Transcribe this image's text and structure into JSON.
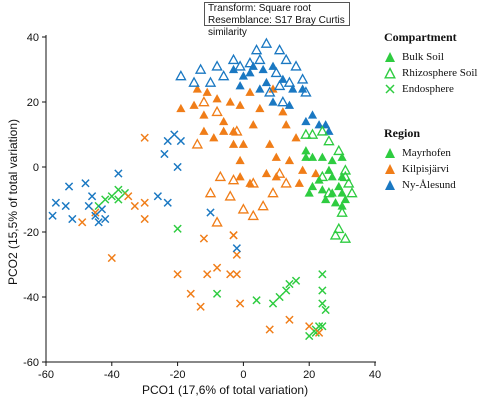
{
  "info": {
    "transform": "Transform: Square root",
    "resemblance": "Resemblance: S17 Bray Curtis similarity"
  },
  "legend": {
    "compartment_title": "Compartment",
    "compartment_items": [
      {
        "label": "Bulk Soil",
        "marker": "triangle-filled"
      },
      {
        "label": "Rhizosphere Soil",
        "marker": "triangle-open"
      },
      {
        "label": "Endosphere",
        "marker": "cross"
      }
    ],
    "region_title": "Region",
    "region_items": [
      {
        "label": "Mayrhofen",
        "color": "#2ecc40"
      },
      {
        "label": "Kilpisjärvi",
        "color": "#f07d18"
      },
      {
        "label": "Ny-Ålesund",
        "color": "#1a78c2"
      }
    ]
  },
  "colors": {
    "Mayrhofen": "#2ecc40",
    "Kilpisjärvi": "#f07d18",
    "Ny-Ålesund": "#1a78c2"
  },
  "chart_data": {
    "type": "scatter",
    "xlabel": "PCO1 (17,6% of total variation)",
    "ylabel": "PCO2 (15,5% of total variation)",
    "xlim": [
      -60,
      40
    ],
    "ylim": [
      -60,
      40
    ],
    "xticks": [
      -60,
      -40,
      -20,
      0,
      20,
      40
    ],
    "yticks": [
      -60,
      -40,
      -20,
      0,
      20,
      40
    ],
    "grid": false,
    "series": [
      {
        "name": "Bulk Soil – Mayrhofen",
        "region": "Mayrhofen",
        "marker": "triangle-filled",
        "points": [
          [
            21,
            3
          ],
          [
            24,
            3
          ],
          [
            27,
            2
          ],
          [
            30,
            3
          ],
          [
            26,
            -1
          ],
          [
            27,
            -3
          ],
          [
            23,
            -4
          ],
          [
            30,
            -3
          ],
          [
            24,
            -7
          ],
          [
            29,
            -6
          ],
          [
            30,
            -8
          ],
          [
            31,
            -10
          ],
          [
            27,
            -8
          ],
          [
            28,
            -11
          ],
          [
            30,
            -12
          ],
          [
            20,
            -8
          ],
          [
            21,
            -6
          ],
          [
            25,
            -10
          ],
          [
            19,
            5
          ],
          [
            19,
            3
          ]
        ]
      },
      {
        "name": "Bulk Soil – Kilpisjärvi",
        "region": "Kilpisjärvi",
        "marker": "triangle-filled",
        "points": [
          [
            -14,
            24
          ],
          [
            -11,
            23
          ],
          [
            -8,
            21
          ],
          [
            -15,
            19
          ],
          [
            -12,
            16
          ],
          [
            -19,
            18
          ],
          [
            -12,
            11
          ],
          [
            -6,
            14
          ],
          [
            -6,
            11
          ],
          [
            -9,
            9
          ],
          [
            -3,
            11
          ],
          [
            -3,
            7
          ],
          [
            -1,
            2
          ],
          [
            -1,
            -3
          ],
          [
            3,
            13
          ],
          [
            5,
            18
          ],
          [
            8,
            7
          ],
          [
            -1,
            19
          ],
          [
            -4,
            20
          ],
          [
            2,
            23
          ],
          [
            9,
            24
          ],
          [
            12,
            17
          ],
          [
            13,
            13
          ],
          [
            16,
            9
          ],
          [
            10,
            3
          ],
          [
            14,
            2
          ],
          [
            18,
            -1
          ],
          [
            17,
            -5
          ],
          [
            22,
            -2
          ],
          [
            7,
            -2
          ],
          [
            10,
            -3
          ],
          [
            0,
            7
          ],
          [
            2,
            -5
          ]
        ]
      },
      {
        "name": "Bulk Soil – Ny-Ålesund",
        "region": "Ny-Ålesund",
        "marker": "triangle-filled",
        "points": [
          [
            0,
            28
          ],
          [
            3,
            31
          ],
          [
            -3,
            30
          ],
          [
            -1,
            25
          ],
          [
            6,
            30
          ],
          [
            9,
            31
          ],
          [
            12,
            27
          ],
          [
            15,
            24
          ],
          [
            14,
            19
          ],
          [
            18,
            24
          ],
          [
            21,
            16
          ],
          [
            23,
            13
          ],
          [
            26,
            11
          ],
          [
            25,
            13
          ],
          [
            19,
            14
          ],
          [
            9,
            20
          ],
          [
            5,
            24
          ],
          [
            2,
            29
          ],
          [
            7,
            26
          ]
        ]
      },
      {
        "name": "Rhizosphere Soil – Mayrhofen",
        "region": "Mayrhofen",
        "marker": "triangle-open",
        "points": [
          [
            19,
            10
          ],
          [
            24,
            11
          ],
          [
            21,
            10
          ],
          [
            26,
            8
          ],
          [
            29,
            5
          ],
          [
            31,
            -1
          ],
          [
            32,
            -5
          ],
          [
            30,
            -14
          ],
          [
            29,
            -19
          ],
          [
            31,
            -22
          ],
          [
            28,
            -21
          ],
          [
            33,
            -8
          ],
          [
            31,
            -3
          ],
          [
            24,
            -3
          ],
          [
            26,
            -8
          ]
        ]
      },
      {
        "name": "Rhizosphere Soil – Kilpisjärvi",
        "region": "Kilpisjärvi",
        "marker": "triangle-open",
        "points": [
          [
            -12,
            20
          ],
          [
            -14,
            7
          ],
          [
            -7,
            -3
          ],
          [
            -10,
            -8
          ],
          [
            -4,
            -9
          ],
          [
            0,
            -13
          ],
          [
            -8,
            -17
          ],
          [
            3,
            -15
          ],
          [
            6,
            -12
          ],
          [
            9,
            -8
          ],
          [
            3,
            -5
          ],
          [
            -2,
            11
          ],
          [
            -8,
            17
          ],
          [
            -3,
            -4
          ],
          [
            11,
            -2
          ],
          [
            13,
            -5
          ]
        ]
      },
      {
        "name": "Rhizosphere Soil – Ny-Ålesund",
        "region": "Ny-Ålesund",
        "marker": "triangle-open",
        "points": [
          [
            -19,
            28
          ],
          [
            -15,
            26
          ],
          [
            -10,
            26
          ],
          [
            -8,
            31
          ],
          [
            -6,
            28
          ],
          [
            -3,
            33
          ],
          [
            -1,
            31
          ],
          [
            2,
            32
          ],
          [
            4,
            36
          ],
          [
            7,
            38
          ],
          [
            11,
            36
          ],
          [
            13,
            33
          ],
          [
            16,
            31
          ],
          [
            14,
            26
          ],
          [
            18,
            27
          ],
          [
            11,
            25
          ],
          [
            8,
            23
          ],
          [
            10,
            29
          ],
          [
            5,
            33
          ],
          [
            -13,
            30
          ],
          [
            19,
            23
          ],
          [
            12,
            20
          ]
        ]
      },
      {
        "name": "Endosphere – Mayrhofen",
        "region": "Mayrhofen",
        "marker": "cross",
        "points": [
          [
            -36,
            -8
          ],
          [
            -38,
            -7
          ],
          [
            -42,
            -10
          ],
          [
            -40,
            -9
          ],
          [
            -44,
            -12
          ],
          [
            -38,
            -10
          ],
          [
            -20,
            -19
          ],
          [
            -8,
            -39
          ],
          [
            4,
            -41
          ],
          [
            9,
            -42
          ],
          [
            13,
            -38
          ],
          [
            14,
            -36
          ],
          [
            16,
            -35
          ],
          [
            11,
            -40
          ],
          [
            24,
            -33
          ],
          [
            24,
            -38
          ],
          [
            24,
            -42
          ],
          [
            25,
            -44
          ],
          [
            22,
            -50
          ],
          [
            23,
            -49
          ],
          [
            24,
            -49
          ],
          [
            22,
            -51
          ],
          [
            20,
            -52
          ]
        ]
      },
      {
        "name": "Endosphere – Kilpisjärvi",
        "region": "Kilpisjärvi",
        "marker": "cross",
        "points": [
          [
            -30,
            9
          ],
          [
            -35,
            -9
          ],
          [
            -33,
            -12
          ],
          [
            -45,
            -14
          ],
          [
            -49,
            -17
          ],
          [
            -30,
            -11
          ],
          [
            -30,
            -16
          ],
          [
            -40,
            -28
          ],
          [
            -20,
            -33
          ],
          [
            -16,
            -39
          ],
          [
            -13,
            -43
          ],
          [
            -8,
            -31
          ],
          [
            -11,
            -33
          ],
          [
            -12,
            -22
          ],
          [
            -3,
            -21
          ],
          [
            -2,
            -27
          ],
          [
            -4,
            -33
          ],
          [
            -2,
            -33
          ],
          [
            -1,
            -42
          ],
          [
            8,
            -50
          ],
          [
            14,
            -47
          ],
          [
            20,
            -49
          ],
          [
            23,
            -51
          ],
          [
            -3,
            -21
          ]
        ]
      },
      {
        "name": "Endosphere – Ny-Ålesund",
        "region": "Ny-Ålesund",
        "marker": "cross",
        "points": [
          [
            -57,
            -11
          ],
          [
            -54,
            -12
          ],
          [
            -58,
            -15
          ],
          [
            -52,
            -16
          ],
          [
            -53,
            -6
          ],
          [
            -48,
            -5
          ],
          [
            -46,
            -9
          ],
          [
            -47,
            -12
          ],
          [
            -43,
            -13
          ],
          [
            -45,
            -15
          ],
          [
            -44,
            -17
          ],
          [
            -42,
            -16
          ],
          [
            -38,
            -2
          ],
          [
            -21,
            10
          ],
          [
            -19,
            8
          ],
          [
            -23,
            8
          ],
          [
            -24,
            4
          ],
          [
            -20,
            0
          ],
          [
            -26,
            -9
          ],
          [
            -23,
            -11
          ],
          [
            -10,
            -14
          ],
          [
            -2,
            -25
          ]
        ]
      }
    ]
  }
}
